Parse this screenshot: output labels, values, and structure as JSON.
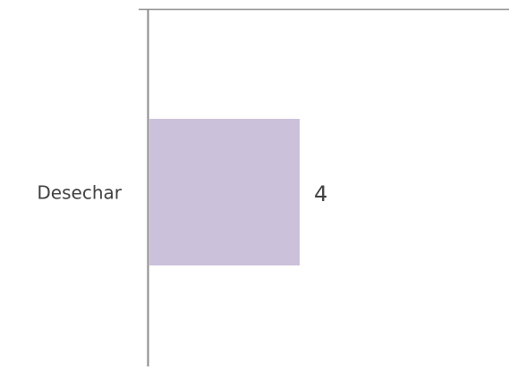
{
  "chart_data": {
    "type": "hbar",
    "categories": [
      "Desechar"
    ],
    "values": [
      4
    ],
    "color": "#cbc1da",
    "xlim": [
      0,
      10
    ]
  }
}
